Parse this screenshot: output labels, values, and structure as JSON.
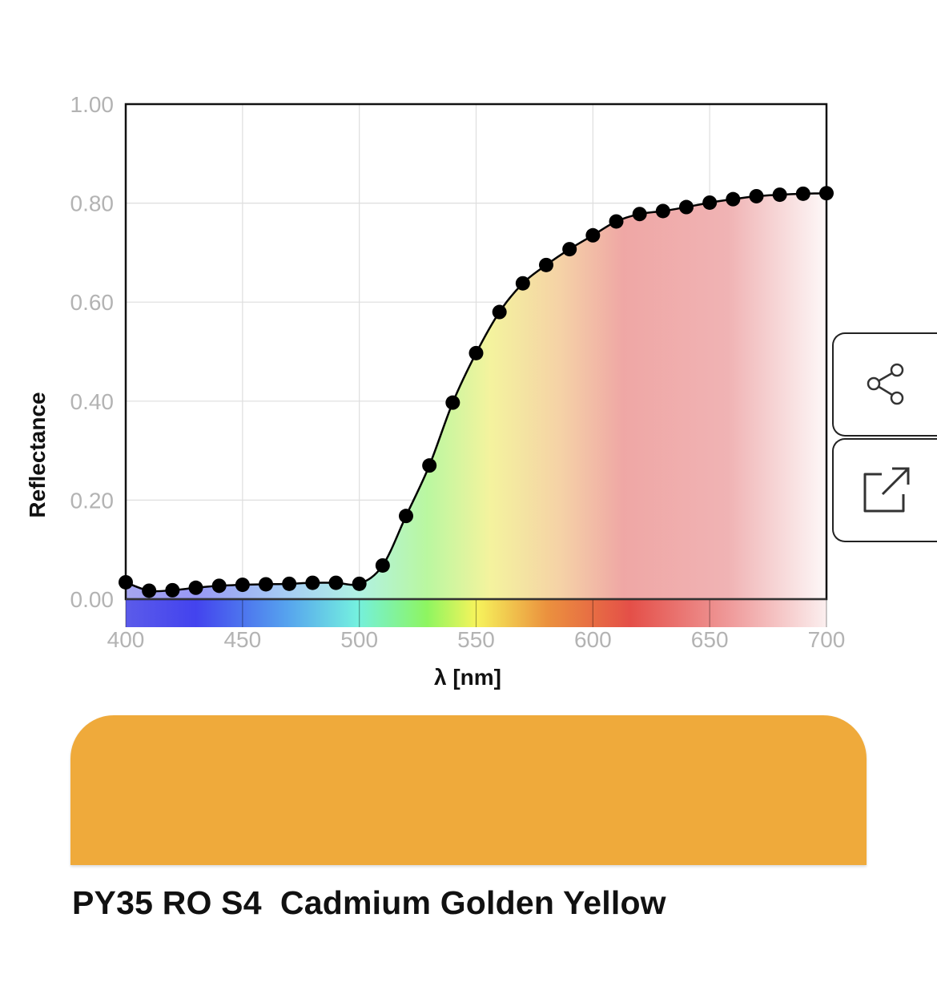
{
  "chart_data": {
    "type": "line",
    "xlabel": "λ [nm]",
    "ylabel": "Reflectance",
    "xlim": [
      400,
      700
    ],
    "ylim": [
      0,
      1
    ],
    "x_ticks": [
      "400",
      "450",
      "500",
      "550",
      "600",
      "650",
      "700"
    ],
    "y_ticks": [
      "0.00",
      "0.20",
      "0.40",
      "0.60",
      "0.80",
      "1.00"
    ],
    "grid": true,
    "series": [
      {
        "x": [
          400,
          410,
          420,
          430,
          440,
          450,
          460,
          470,
          480,
          490,
          500,
          510,
          520,
          530,
          540,
          550,
          560,
          570,
          580,
          590,
          600,
          610,
          620,
          630,
          640,
          650,
          660,
          670,
          680,
          690,
          700
        ],
        "values": [
          0.034,
          0.017,
          0.018,
          0.023,
          0.027,
          0.029,
          0.03,
          0.031,
          0.033,
          0.033,
          0.031,
          0.068,
          0.168,
          0.27,
          0.397,
          0.497,
          0.58,
          0.638,
          0.675,
          0.707,
          0.735,
          0.763,
          0.778,
          0.784,
          0.792,
          0.801,
          0.808,
          0.814,
          0.817,
          0.819,
          0.82
        ]
      }
    ]
  },
  "colors": {
    "swatch": "#EFAA3B",
    "line": "#000000",
    "grid": "#dedede"
  },
  "icons": {
    "share": "share-icon",
    "open_external": "open-external-icon"
  },
  "pigment": {
    "name": "PY35 RO S4  Cadmium Golden Yellow"
  }
}
